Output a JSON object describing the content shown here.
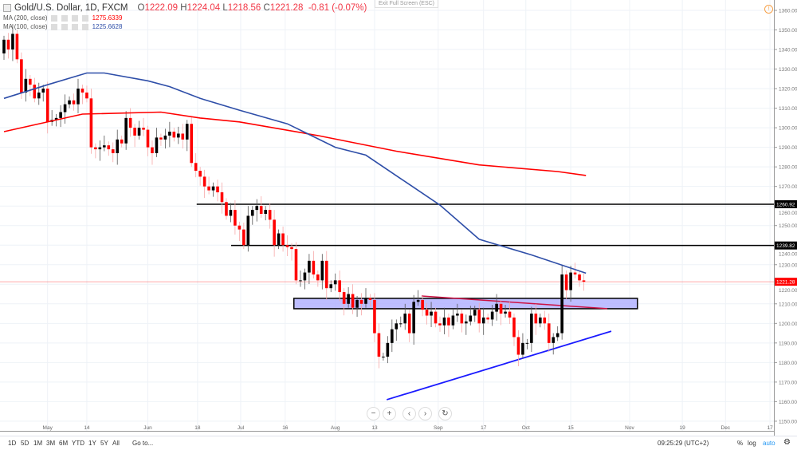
{
  "header": {
    "symbol": "Gold/U.S. Dollar, 1D, FXCM",
    "open_label": "O",
    "open": "1222.09",
    "high_label": "H",
    "high": "1224.04",
    "low_label": "L",
    "low": "1218.56",
    "close_label": "C",
    "close": "1221.28",
    "change": "-0.81 (-0.07%)",
    "exit_fullscreen": "Exit Full Screen (ESC)"
  },
  "indicators": [
    {
      "label": "MA (200, close)",
      "value": "1275.6339",
      "color": "#ff0000"
    },
    {
      "label": "MA (100, close)",
      "value": "1225.6628",
      "color": "#2e4ea8"
    }
  ],
  "chart_data": {
    "type": "candlestick",
    "y_ticks": [
      1150,
      1160,
      1170,
      1180,
      1190,
      1200,
      1210,
      1220,
      1230,
      1240,
      1250,
      1260,
      1270,
      1280,
      1290,
      1300,
      1310,
      1320,
      1330,
      1340,
      1350,
      1360
    ],
    "ylim": [
      1146,
      1366
    ],
    "x_ticks": [
      {
        "label": "May",
        "bar": 10
      },
      {
        "label": "14",
        "bar": 19
      },
      {
        "label": "Jun",
        "bar": 33
      },
      {
        "label": "18",
        "bar": 44.4
      },
      {
        "label": "Jul",
        "bar": 54.3
      },
      {
        "label": "16",
        "bar": 64.5
      },
      {
        "label": "Aug",
        "bar": 76
      },
      {
        "label": "13",
        "bar": 85
      },
      {
        "label": "Sep",
        "bar": 99.6
      },
      {
        "label": "17",
        "bar": 110
      },
      {
        "label": "Oct",
        "bar": 119.7
      },
      {
        "label": "15",
        "bar": 130
      },
      {
        "label": "Nov",
        "bar": 143.5
      },
      {
        "label": "19",
        "bar": 155.6
      },
      {
        "label": "Dec",
        "bar": 165.5
      },
      {
        "label": "17",
        "bar": 175.7
      }
    ],
    "first_open": 1338,
    "closes": [
      1345,
      1340,
      1348,
      1335,
      1318,
      1325,
      1322,
      1315,
      1318,
      1320,
      1303,
      1304,
      1305,
      1308,
      1312,
      1314,
      1312,
      1320,
      1318,
      1315,
      1290,
      1289,
      1290,
      1291,
      1289,
      1287,
      1294,
      1292,
      1305,
      1300,
      1296,
      1300,
      1299,
      1290,
      1287,
      1295,
      1294,
      1296,
      1298,
      1295,
      1297,
      1294,
      1302,
      1282,
      1278,
      1275,
      1270,
      1268,
      1270,
      1267,
      1262,
      1255,
      1258,
      1250,
      1248,
      1240,
      1255,
      1258,
      1260,
      1256,
      1258,
      1253,
      1240,
      1246,
      1240,
      1239,
      1238,
      1222,
      1222,
      1226,
      1232,
      1225,
      1222,
      1232,
      1218,
      1220,
      1222,
      1216,
      1210,
      1215,
      1208,
      1212,
      1210,
      1213,
      1212,
      1195,
      1183,
      1183,
      1190,
      1197,
      1200,
      1200,
      1205,
      1195,
      1211,
      1212,
      1207,
      1204,
      1206,
      1200,
      1199,
      1203,
      1199,
      1204,
      1205,
      1200,
      1201,
      1204,
      1207,
      1200,
      1203,
      1202,
      1206,
      1210,
      1205,
      1206,
      1203,
      1193,
      1184,
      1190,
      1190,
      1205,
      1200,
      1203,
      1200,
      1190,
      1193,
      1195,
      1225,
      1217,
      1226,
      1225,
      1222,
      1221.28
    ],
    "ma200": [
      [
        0,
        1298
      ],
      [
        18,
        1307
      ],
      [
        36,
        1308
      ],
      [
        45,
        1305
      ],
      [
        54,
        1303
      ],
      [
        72,
        1296
      ],
      [
        90,
        1288
      ],
      [
        109,
        1281
      ],
      [
        127,
        1277.6
      ],
      [
        133.5,
        1275.63
      ]
    ],
    "ma100": [
      [
        0,
        1315
      ],
      [
        10,
        1322
      ],
      [
        19,
        1328
      ],
      [
        23,
        1328
      ],
      [
        33,
        1324
      ],
      [
        38,
        1321
      ],
      [
        45,
        1315
      ],
      [
        54,
        1309
      ],
      [
        65,
        1302
      ],
      [
        76,
        1290
      ],
      [
        83,
        1286
      ],
      [
        91,
        1274
      ],
      [
        100,
        1260.5
      ],
      [
        109,
        1243
      ],
      [
        121,
        1235
      ],
      [
        133.5,
        1225.66
      ]
    ],
    "horizontal_lines": [
      {
        "value": 1260.92,
        "label": "1260.92",
        "from_bar": 44.2
      },
      {
        "value": 1239.82,
        "label": "1239.82",
        "from_bar": 52.1
      }
    ],
    "zone": {
      "from_bar": 66.5,
      "to_bar": 145.3,
      "top": 1212.8,
      "bottom": 1207.5,
      "color": "#b3b3ff"
    },
    "resistance_trendline": {
      "from": [
        95.8,
        1214
      ],
      "to": [
        138.4,
        1207.5
      ],
      "color": "#cc1144"
    },
    "support_trendline": {
      "from": [
        87.8,
        1161
      ],
      "to": [
        139.3,
        1196
      ],
      "color": "#1a1aff"
    },
    "last_price": {
      "value": 1221.28,
      "label": "1221.28",
      "color": "#ff0000"
    }
  },
  "nav": {
    "zoom_out": "−",
    "zoom_in": "+",
    "scroll_left": "‹",
    "scroll_right": "›",
    "reset": "↻"
  },
  "toolbar": {
    "ranges": [
      "1D",
      "5D",
      "1M",
      "3M",
      "6M",
      "YTD",
      "1Y",
      "5Y",
      "All"
    ],
    "goto": "Go to...",
    "time": "09:25:29 (UTC+2)",
    "percent": "%",
    "log": "log",
    "auto": "auto",
    "settings_icon": "gear-icon"
  }
}
